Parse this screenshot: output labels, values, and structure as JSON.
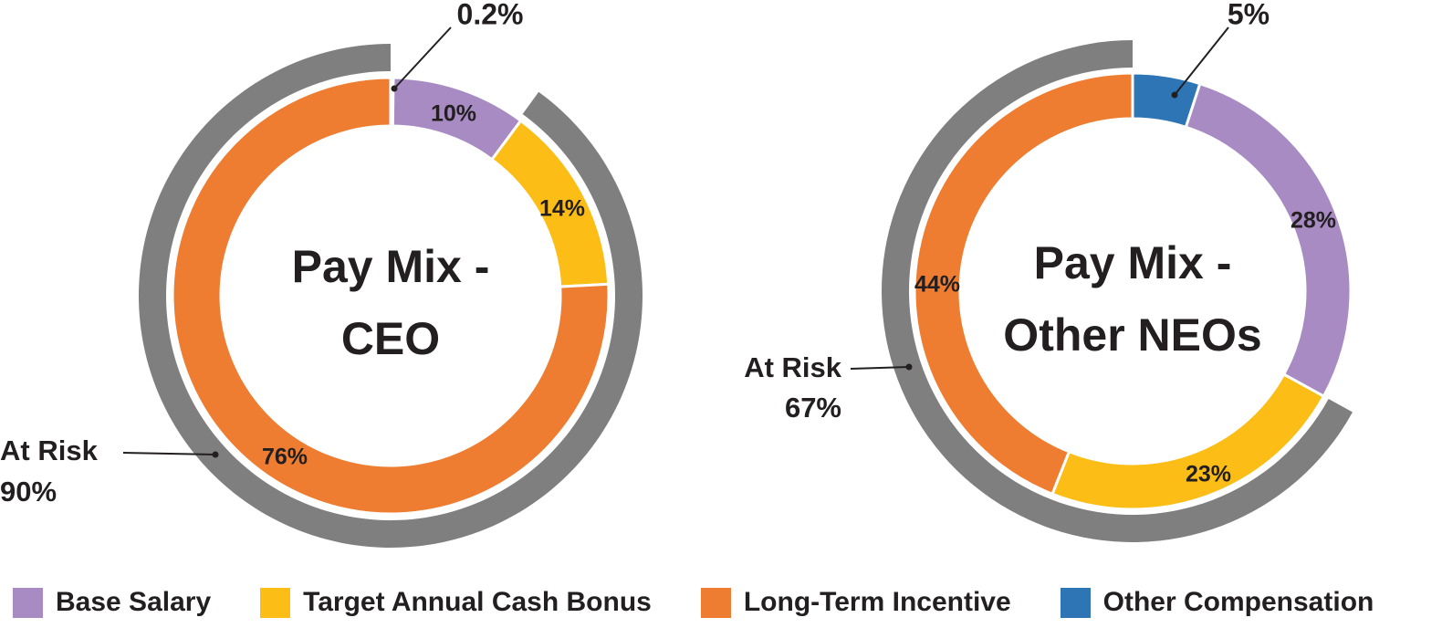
{
  "colors": {
    "base_salary": "#a78bc2",
    "target_bonus": "#fbbd16",
    "long_term": "#ee7d31",
    "other": "#2e75b6",
    "at_risk": "#7f7f7f",
    "text": "#231f20"
  },
  "chart_data": [
    {
      "type": "donut",
      "title_line1": "Pay Mix -",
      "title_line2": "CEO",
      "slices": [
        {
          "key": "other",
          "name": "Other Compensation",
          "value": 0.2,
          "label": "0.2%"
        },
        {
          "key": "base_salary",
          "name": "Base Salary",
          "value": 10,
          "label": "10%"
        },
        {
          "key": "target_bonus",
          "name": "Target Annual Cash Bonus",
          "value": 14,
          "label": "14%"
        },
        {
          "key": "long_term",
          "name": "Long-Term Incentive",
          "value": 76,
          "label": "76%"
        }
      ],
      "at_risk": {
        "label": "At Risk",
        "value": 90,
        "value_label": "90%"
      }
    },
    {
      "type": "donut",
      "title_line1": "Pay Mix -",
      "title_line2": "Other NEOs",
      "slices": [
        {
          "key": "other",
          "name": "Other Compensation",
          "value": 5,
          "label": "5%"
        },
        {
          "key": "base_salary",
          "name": "Base Salary",
          "value": 28,
          "label": "28%"
        },
        {
          "key": "target_bonus",
          "name": "Target Annual Cash Bonus",
          "value": 23,
          "label": "23%"
        },
        {
          "key": "long_term",
          "name": "Long-Term Incentive",
          "value": 44,
          "label": "44%"
        }
      ],
      "at_risk": {
        "label": "At Risk",
        "value": 67,
        "value_label": "67%"
      }
    }
  ],
  "legend": [
    {
      "key": "base_salary",
      "label": "Base Salary"
    },
    {
      "key": "target_bonus",
      "label": "Target Annual Cash Bonus"
    },
    {
      "key": "long_term",
      "label": "Long-Term Incentive"
    },
    {
      "key": "other",
      "label": "Other Compensation"
    }
  ]
}
